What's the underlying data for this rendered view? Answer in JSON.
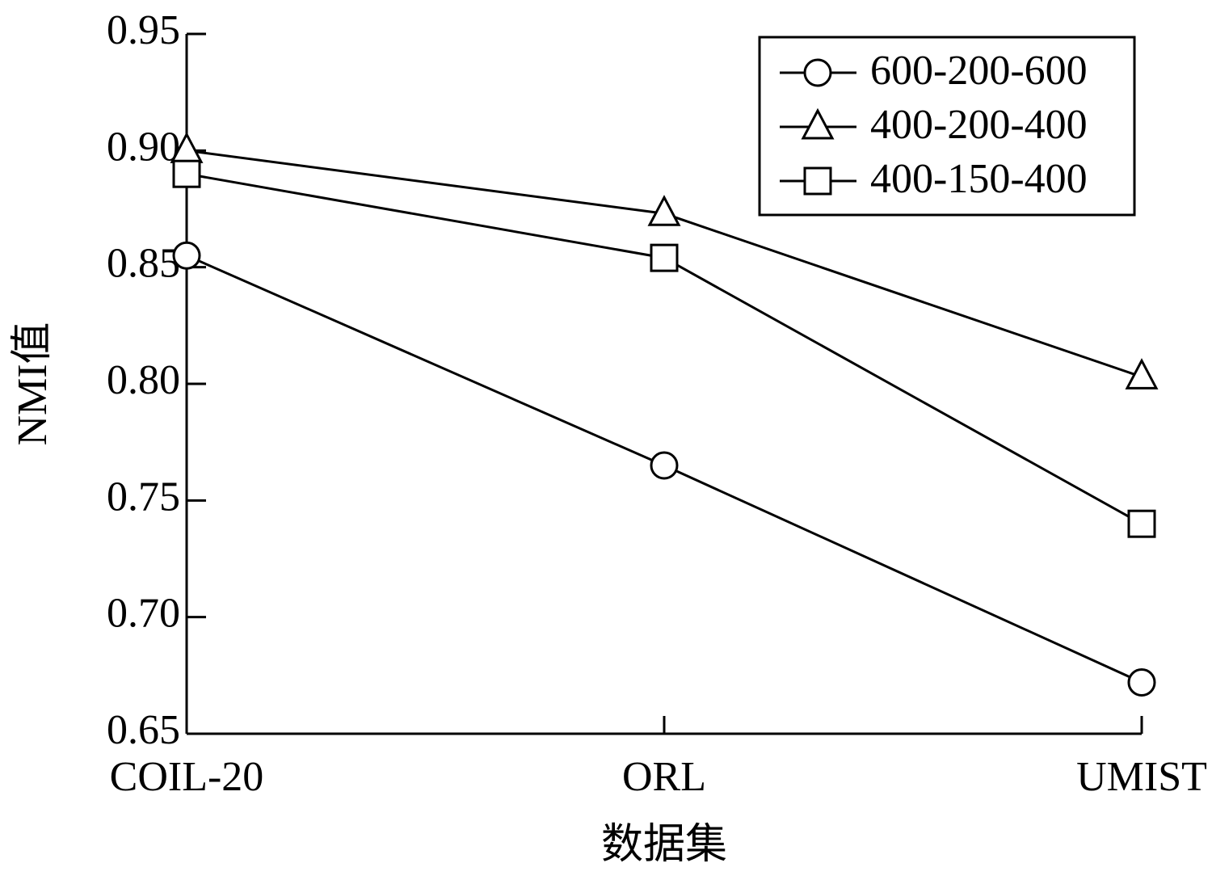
{
  "chart_data": {
    "type": "line",
    "categories": [
      "COIL-20",
      "ORL",
      "UMIST"
    ],
    "x_label": "数据集",
    "y_label": "NMI值",
    "series": [
      {
        "name": "600-200-600",
        "color": "#000000",
        "marker": "circle",
        "values": [
          0.855,
          0.765,
          0.672
        ]
      },
      {
        "name": "400-200-400",
        "color": "#000000",
        "marker": "triangle",
        "values": [
          0.9,
          0.873,
          0.803
        ]
      },
      {
        "name": "400-150-400",
        "color": "#000000",
        "marker": "square",
        "values": [
          0.89,
          0.854,
          0.74
        ]
      }
    ],
    "ylim": [
      0.65,
      0.95
    ],
    "yticks": [
      0.65,
      {
        "value": 0.7,
        "label": "0.70"
      },
      0.75,
      {
        "value": 0.8,
        "label": "0.80"
      },
      0.85,
      {
        "value": 0.9,
        "label": "0.90"
      },
      0.95
    ],
    "grid": false,
    "legend": "upper right"
  }
}
